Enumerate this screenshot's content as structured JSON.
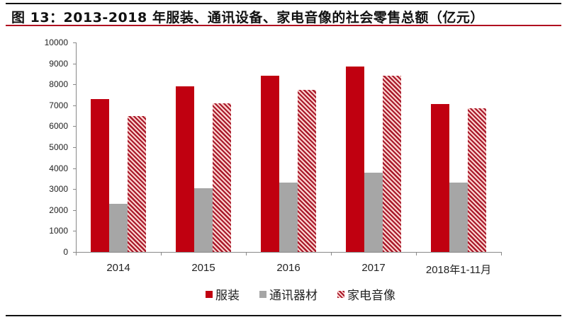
{
  "header": {
    "title": "图 13：2013-2018 年服装、通讯设备、家电音像的社会零售总额（亿元）"
  },
  "chart_data": {
    "type": "bar",
    "title": "图 13：2013-2018 年服装、通讯设备、家电音像的社会零售总额（亿元）",
    "xlabel": "",
    "ylabel": "亿元",
    "ylim": [
      0,
      10000
    ],
    "yticks": [
      0,
      1000,
      2000,
      3000,
      4000,
      5000,
      6000,
      7000,
      8000,
      9000,
      10000
    ],
    "categories": [
      "2014",
      "2015",
      "2016",
      "2017",
      "2018年1-11月"
    ],
    "series": [
      {
        "name": "服装",
        "color": "#c00010",
        "pattern": "solid",
        "values": [
          7300,
          7900,
          8400,
          8850,
          7050
        ]
      },
      {
        "name": "通讯器材",
        "color": "#a6a6a6",
        "pattern": "solid",
        "values": [
          2300,
          3050,
          3300,
          3800,
          3300
        ]
      },
      {
        "name": "家电音像",
        "color": "#a8182a",
        "pattern": "diagonal-stripes",
        "values": [
          6500,
          7100,
          7750,
          8400,
          6850
        ]
      }
    ],
    "grid": false,
    "legend_position": "bottom"
  },
  "legend": [
    {
      "label": "服装",
      "color": "#c00010"
    },
    {
      "label": "通讯器材",
      "color": "#a6a6a6"
    },
    {
      "label": "家电音像",
      "color": "#a8182a"
    }
  ]
}
